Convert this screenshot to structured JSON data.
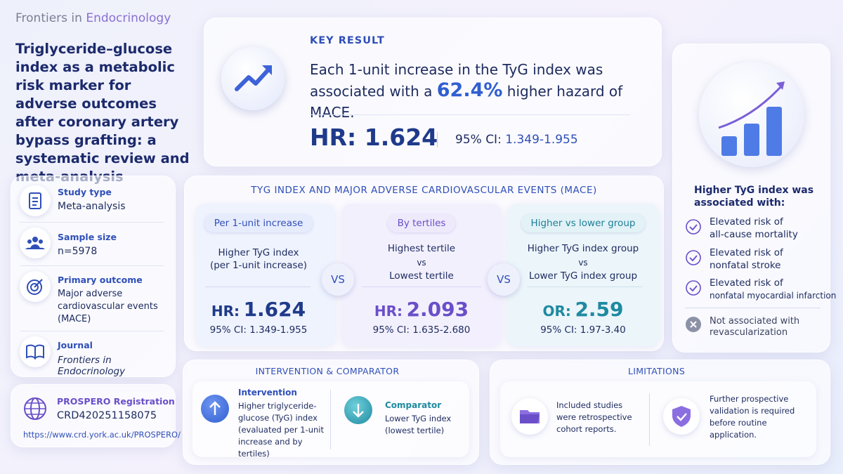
{
  "brand": {
    "prefix": "Frontiers in",
    "name": "Endocrinology"
  },
  "title": "Triglyceride–glucose index as a metabolic risk marker for adverse outcomes after coronary artery bypass grafting: a systematic review and meta-analysis",
  "info": [
    {
      "label": "Study type",
      "value": "Meta-analysis"
    },
    {
      "label": "Sample size",
      "value": "n=5978"
    },
    {
      "label": "Primary outcome",
      "value": "Major adverse cardiovascular events (MACE)"
    },
    {
      "label": "Journal",
      "value": "Frontiers in Endocrinology"
    }
  ],
  "prospero": {
    "label": "PROSPERO Registration",
    "id": "CRD420251158075",
    "url": "https://www.crd.york.ac.uk/PROSPERO/"
  },
  "key_result": {
    "label": "KEY RESULT",
    "text_before": "Each 1-unit increase in the TyG index was associated with a",
    "highlight": "62.4%",
    "text_after": "higher hazard of MACE.",
    "hr_label": "HR:",
    "hr_value": "1.624",
    "ci_label": "95% CI:",
    "ci_value": "1.349-1.955"
  },
  "mace": {
    "title": "TYG INDEX AND MAJOR ADVERSE CARDIOVASCULAR EVENTS (MACE)",
    "vs": "VS",
    "columns": [
      {
        "tag": "Per 1-unit increase",
        "lines": [
          "Higher TyG index",
          "(per 1-unit increase)"
        ],
        "stat_label": "HR:",
        "stat_value": "1.624",
        "ci_label": "95% CI:",
        "ci_value": "1.349-1.955"
      },
      {
        "tag": "By tertiles",
        "lines": [
          "Highest tertile",
          "vs",
          "Lowest tertile"
        ],
        "stat_label": "HR:",
        "stat_value": "2.093",
        "ci_label": "95% CI:",
        "ci_value": "1.635-2.680"
      },
      {
        "tag": "Higher vs lower group",
        "lines": [
          "Higher TyG index group",
          "vs",
          "Lower TyG index group"
        ],
        "stat_label": "OR:",
        "stat_value": "2.59",
        "ci_label": "95% CI:",
        "ci_value": "1.97-3.40"
      }
    ]
  },
  "associations": {
    "title": "Higher TyG index was associated with:",
    "items": [
      {
        "line1": "Elevated risk of",
        "line2": "all-cause mortality"
      },
      {
        "line1": "Elevated risk of",
        "line2": "nonfatal stroke"
      },
      {
        "line1": "Elevated risk of",
        "line2": "nonfatal myocardial infarction"
      }
    ],
    "not_associated": {
      "line1": "Not associated with",
      "line2": "revascularization"
    }
  },
  "intervention_comparator": {
    "title": "INTERVENTION & COMPARATOR",
    "intervention": {
      "label": "Intervention",
      "text": "Higher triglyceride-glucose (TyG) index (evaluated per 1-unit increase and by tertiles)"
    },
    "comparator": {
      "label": "Comparator",
      "text": "Lower TyG index (lowest tertile)"
    }
  },
  "limitations": {
    "title": "LIMITATIONS",
    "items": [
      "Included studies were retrospective cohort reports.",
      "Further prospective validation is required before routine application."
    ]
  }
}
